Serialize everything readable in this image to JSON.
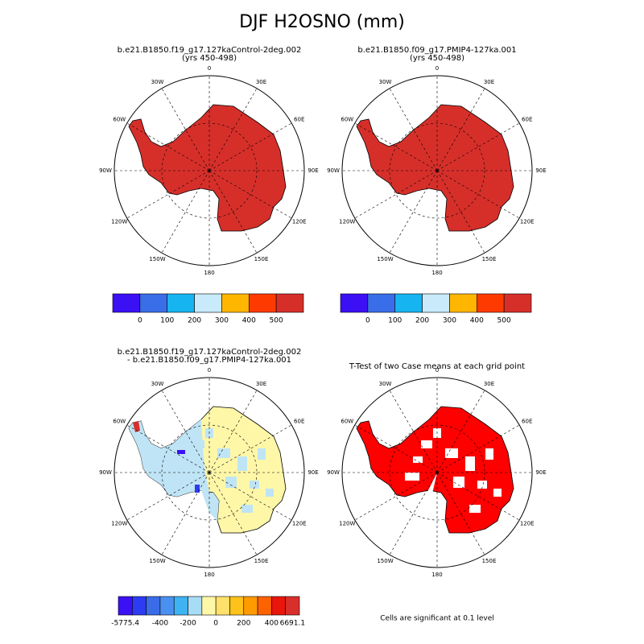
{
  "title": "DJF H2OSNO (mm)",
  "longitude_labels": [
    "0",
    "30E",
    "60E",
    "90E",
    "120E",
    "150E",
    "180",
    "150W",
    "120W",
    "90W",
    "60W",
    "30W"
  ],
  "panels": [
    {
      "title": [
        "b.e21.B1850.f19_g17.127kaControl-2deg.002",
        "(yrs 450-498)"
      ],
      "fill": "#d62f2a",
      "colorbar": {
        "colors": [
          "#3c10f5",
          "#3a6ee8",
          "#16b4f0",
          "#c8eafa",
          "#ffb600",
          "#ff3a00",
          "#d62f2a"
        ],
        "labels": [
          0,
          100,
          200,
          300,
          400,
          500
        ]
      }
    },
    {
      "title": [
        "b.e21.B1850.f09_g17.PMIP4-127ka.001",
        "(yrs 450-498)"
      ],
      "fill": "#d62f2a",
      "colorbar": {
        "colors": [
          "#3c10f5",
          "#3a6ee8",
          "#16b4f0",
          "#c8eafa",
          "#ffb600",
          "#ff3a00",
          "#d62f2a"
        ],
        "labels": [
          0,
          100,
          200,
          300,
          400,
          500
        ]
      }
    },
    {
      "title": [
        "b.e21.B1850.f19_g17.127kaControl-2deg.002",
        "- b.e21.B1850.f09_g17.PMIP4-127ka.001"
      ],
      "fill": "#fff7a8",
      "colorbar": {
        "colors": [
          "#3c10f5",
          "#2d3bf2",
          "#3b6ce8",
          "#4a90f0",
          "#3fb2f2",
          "#a7dcf5",
          "#fff7a8",
          "#ffe06b",
          "#ffc21a",
          "#ff9a00",
          "#ff6200",
          "#e8160b",
          "#d92f2a"
        ],
        "labels": [
          -5775.4,
          -400,
          -200,
          0,
          200,
          400,
          6691.1
        ]
      }
    },
    {
      "title": [
        "T-Test of two Case means at each grid point"
      ],
      "fill": "#ff0000"
    }
  ],
  "footnote": "Cells are significant at 0.1 level"
}
